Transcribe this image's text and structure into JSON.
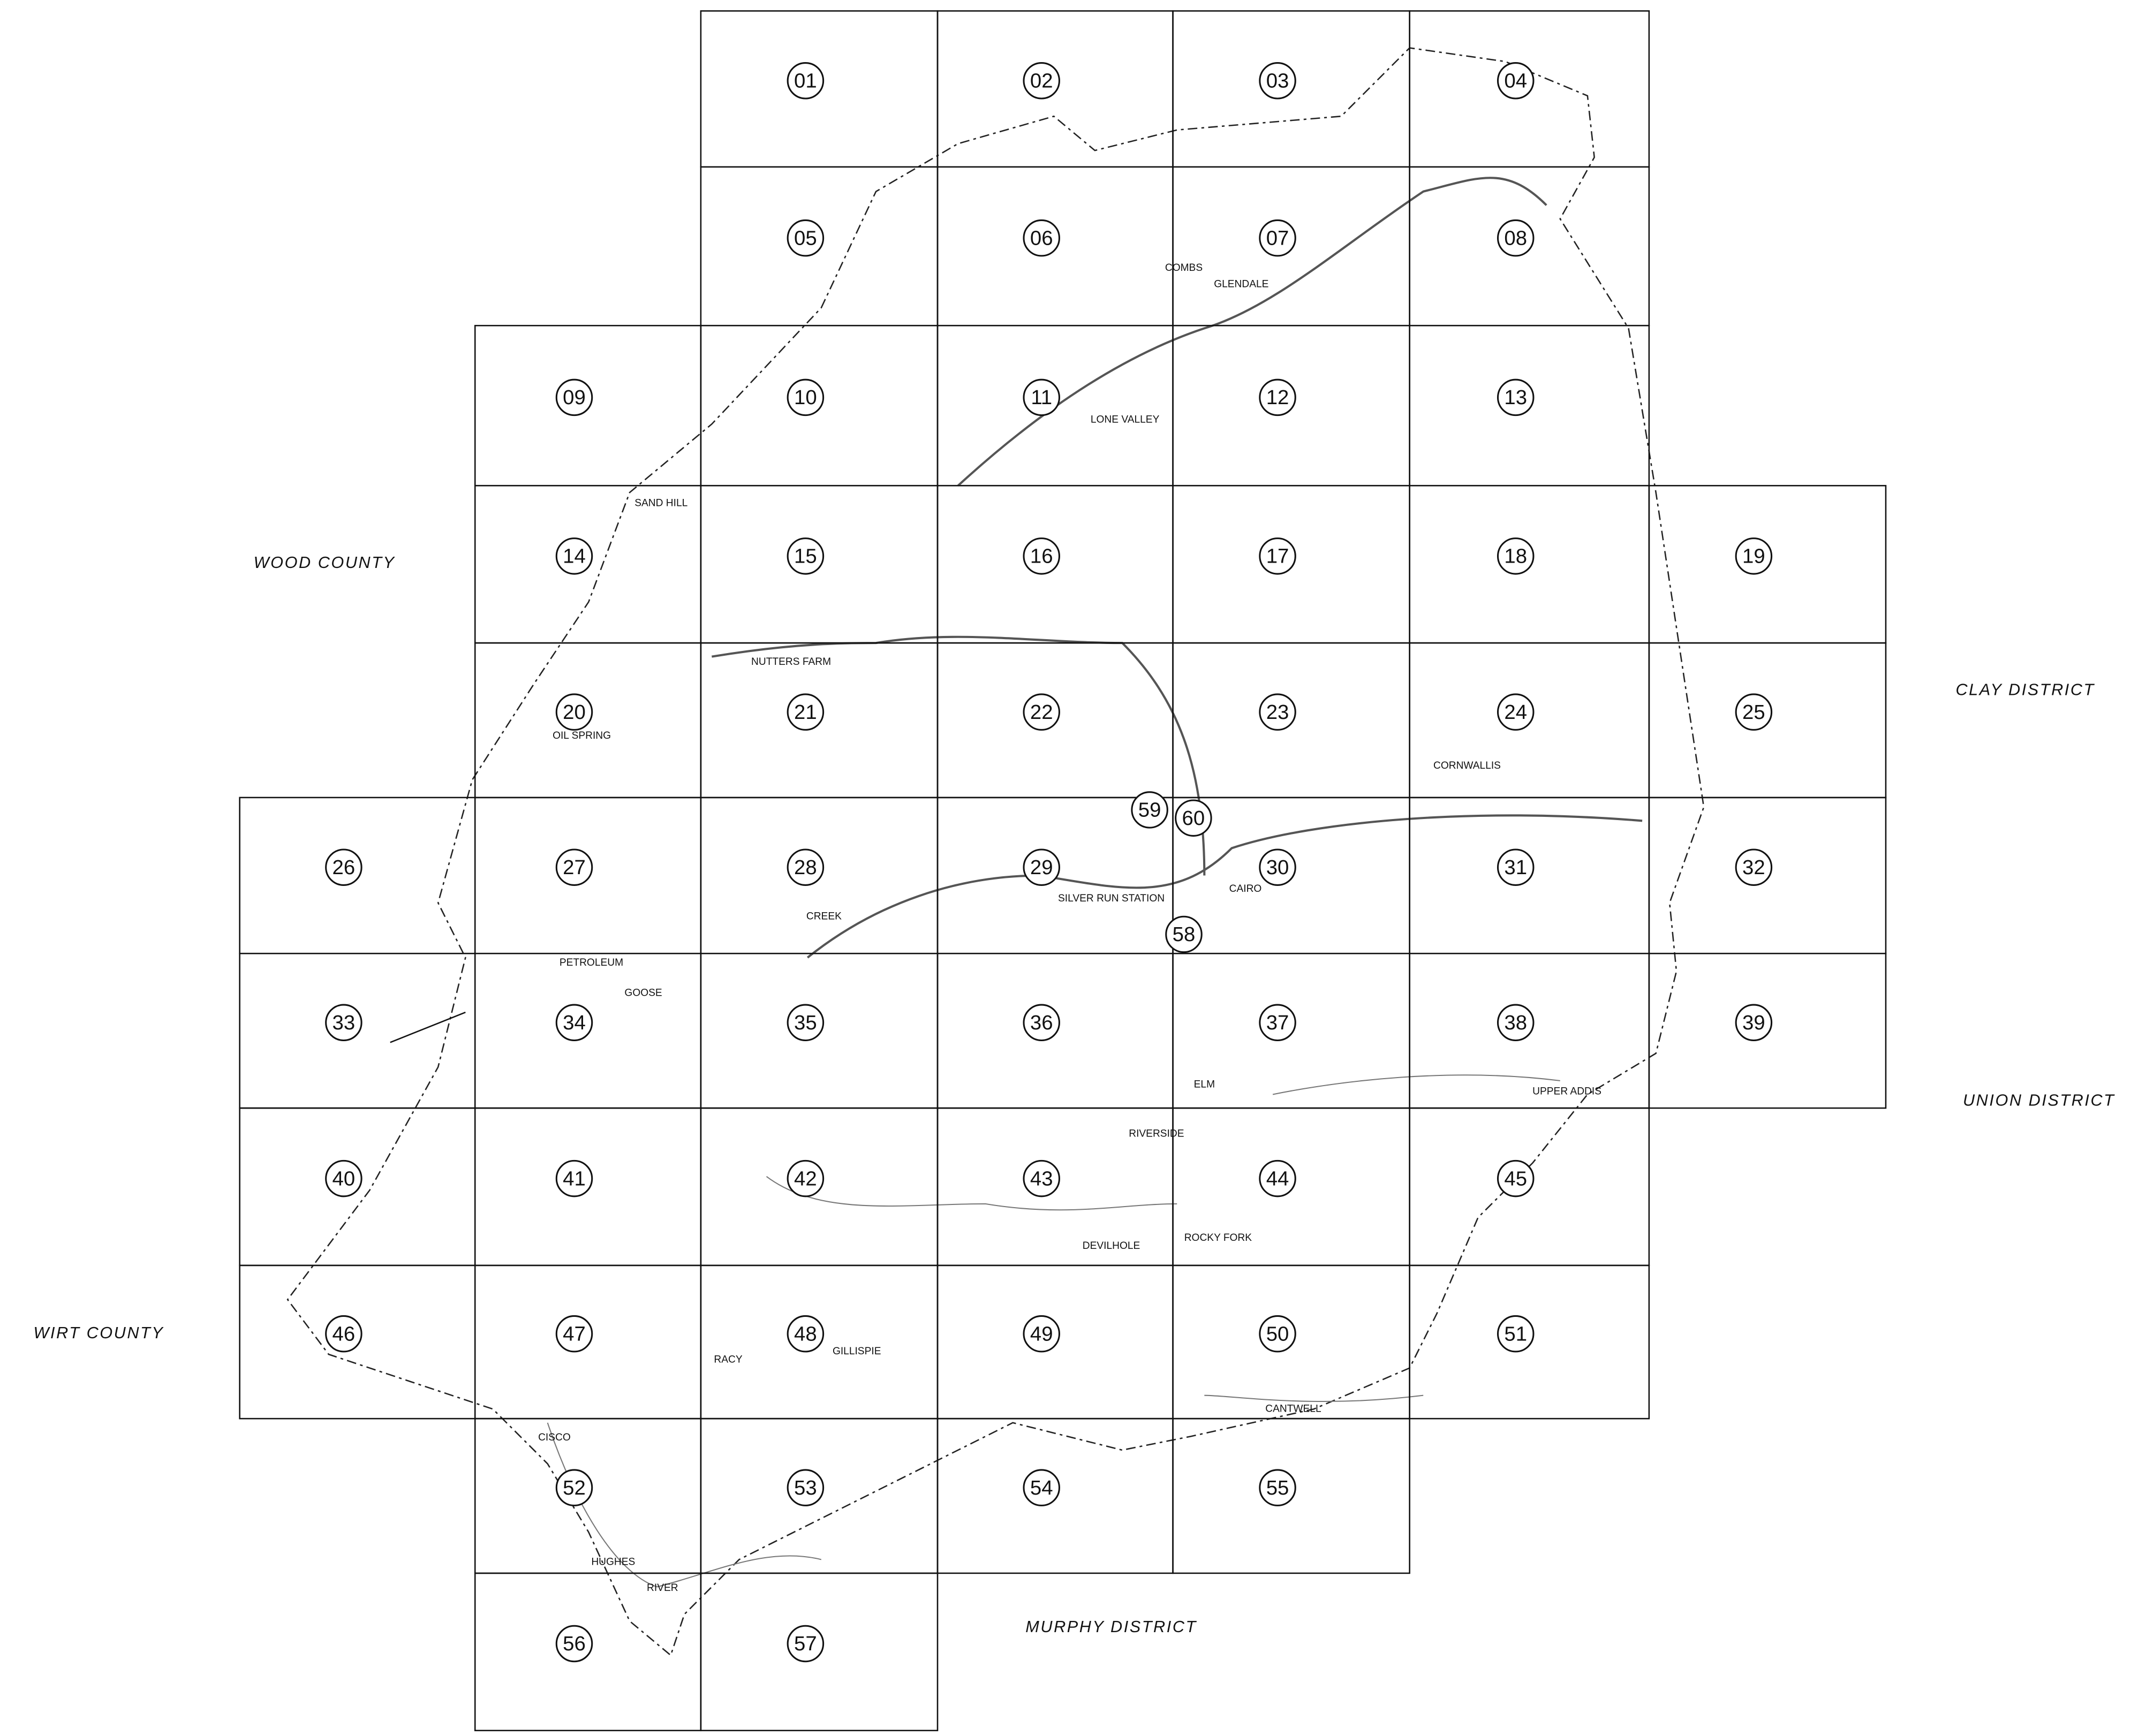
{
  "tiles": [
    "01",
    "02",
    "03",
    "04",
    "05",
    "06",
    "07",
    "08",
    "09",
    "10",
    "11",
    "12",
    "13",
    "14",
    "15",
    "16",
    "17",
    "18",
    "19",
    "20",
    "21",
    "22",
    "23",
    "24",
    "25",
    "26",
    "27",
    "28",
    "29",
    "30",
    "31",
    "32",
    "33",
    "34",
    "35",
    "36",
    "37",
    "38",
    "39",
    "40",
    "41",
    "42",
    "43",
    "44",
    "45",
    "46",
    "47",
    "48",
    "49",
    "50",
    "51",
    "52",
    "53",
    "54",
    "55",
    "56",
    "57",
    "58",
    "59",
    "60"
  ],
  "regions": [
    "WOOD COUNTY",
    "CLAY DISTRICT",
    "UNION DISTRICT",
    "WIRT COUNTY",
    "MURPHY DISTRICT"
  ],
  "places": [
    "SAND HILL",
    "OIL SPRING",
    "PETROLEUM",
    "NUTTERS FARM",
    "LONE VALLEY",
    "COMBS",
    "GLENDALE",
    "CAIRO",
    "RIVERSIDE",
    "CISCO",
    "RACY",
    "CORNWALLIS",
    "SILVER RUN STATION",
    "CANTWELL",
    "DEVILHOLE",
    "UPPER ADDIS",
    "GILLISPIE",
    "HUGHES",
    "RIVER",
    "GOOSE",
    "CREEK",
    "ELM",
    "ROCKY FORK"
  ]
}
